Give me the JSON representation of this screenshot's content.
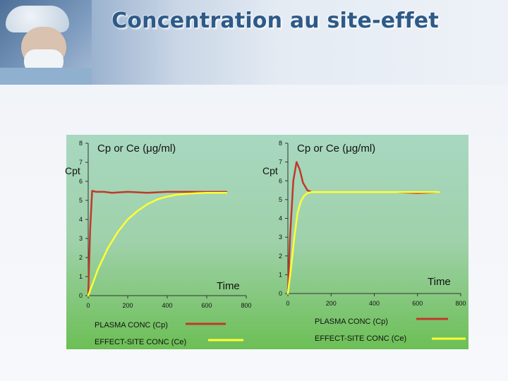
{
  "title": "Concentration au site-effet",
  "chart_data": [
    {
      "type": "line",
      "ylabel": "Cp or Ce (μg/ml)",
      "y_axis_tag": "Cpt",
      "xlabel": "Time",
      "xlim": [
        0,
        800
      ],
      "ylim": [
        0,
        8
      ],
      "x_ticks": [
        "0",
        "200",
        "400",
        "600",
        "800"
      ],
      "y_ticks": [
        "0",
        "1",
        "2",
        "3",
        "4",
        "5",
        "6",
        "7",
        "8"
      ],
      "series": [
        {
          "name": "PLASMA CONC (Cp)",
          "color": "#c0392b",
          "x": [
            0,
            10,
            20,
            40,
            80,
            120,
            200,
            300,
            400,
            500,
            600,
            700
          ],
          "y": [
            0,
            3.5,
            5.5,
            5.45,
            5.45,
            5.4,
            5.45,
            5.4,
            5.45,
            5.45,
            5.45,
            5.45
          ]
        },
        {
          "name": "EFFECT-SITE CONC (Ce)",
          "color": "#ffff33",
          "x": [
            0,
            50,
            100,
            150,
            200,
            250,
            300,
            350,
            400,
            450,
            500,
            550,
            600,
            650,
            700
          ],
          "y": [
            0,
            1.4,
            2.5,
            3.35,
            4.0,
            4.45,
            4.8,
            5.05,
            5.2,
            5.3,
            5.35,
            5.38,
            5.4,
            5.4,
            5.4
          ]
        }
      ]
    },
    {
      "type": "line",
      "ylabel": "Cp or Ce (μg/ml)",
      "y_axis_tag": "Cpt",
      "xlabel": "Time",
      "xlim": [
        0,
        800
      ],
      "ylim": [
        0,
        8
      ],
      "x_ticks": [
        "0",
        "200",
        "400",
        "600",
        "800"
      ],
      "y_ticks": [
        "0",
        "1",
        "2",
        "3",
        "4",
        "5",
        "6",
        "7",
        "8"
      ],
      "series": [
        {
          "name": "PLASMA CONC (Cp)",
          "color": "#c0392b",
          "x": [
            0,
            10,
            25,
            40,
            55,
            70,
            90,
            110,
            150,
            200,
            300,
            400,
            500,
            600,
            700
          ],
          "y": [
            0,
            3.0,
            6.0,
            7.0,
            6.6,
            5.9,
            5.5,
            5.4,
            5.4,
            5.4,
            5.4,
            5.4,
            5.4,
            5.35,
            5.4
          ]
        },
        {
          "name": "EFFECT-SITE CONC (Ce)",
          "color": "#ffff33",
          "x": [
            0,
            15,
            30,
            45,
            60,
            75,
            90,
            110,
            150,
            200,
            300,
            400,
            500,
            600,
            700
          ],
          "y": [
            0,
            1.4,
            3.0,
            4.3,
            4.9,
            5.2,
            5.35,
            5.4,
            5.4,
            5.4,
            5.4,
            5.4,
            5.4,
            5.4,
            5.4
          ]
        }
      ]
    }
  ]
}
